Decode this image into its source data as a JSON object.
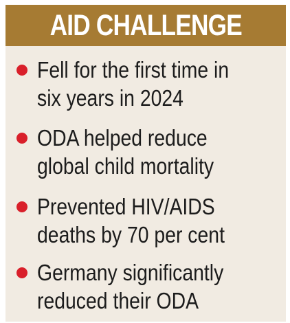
{
  "header": {
    "title": "AID CHALLENGE"
  },
  "colors": {
    "header_bg": "#a67b33",
    "panel_bg": "#f1ebe2",
    "bullet": "#d91f2a",
    "text": "#1c1c1c"
  },
  "items": [
    {
      "line1": "Fell for the first time in",
      "line2": "six years in 2024"
    },
    {
      "line1": "ODA helped reduce",
      "line2": "global child mortality"
    },
    {
      "line1": "Prevented HIV/AIDS",
      "line2": "deaths by 70 per cent"
    },
    {
      "line1": "Germany significantly",
      "line2": "reduced their ODA"
    }
  ]
}
